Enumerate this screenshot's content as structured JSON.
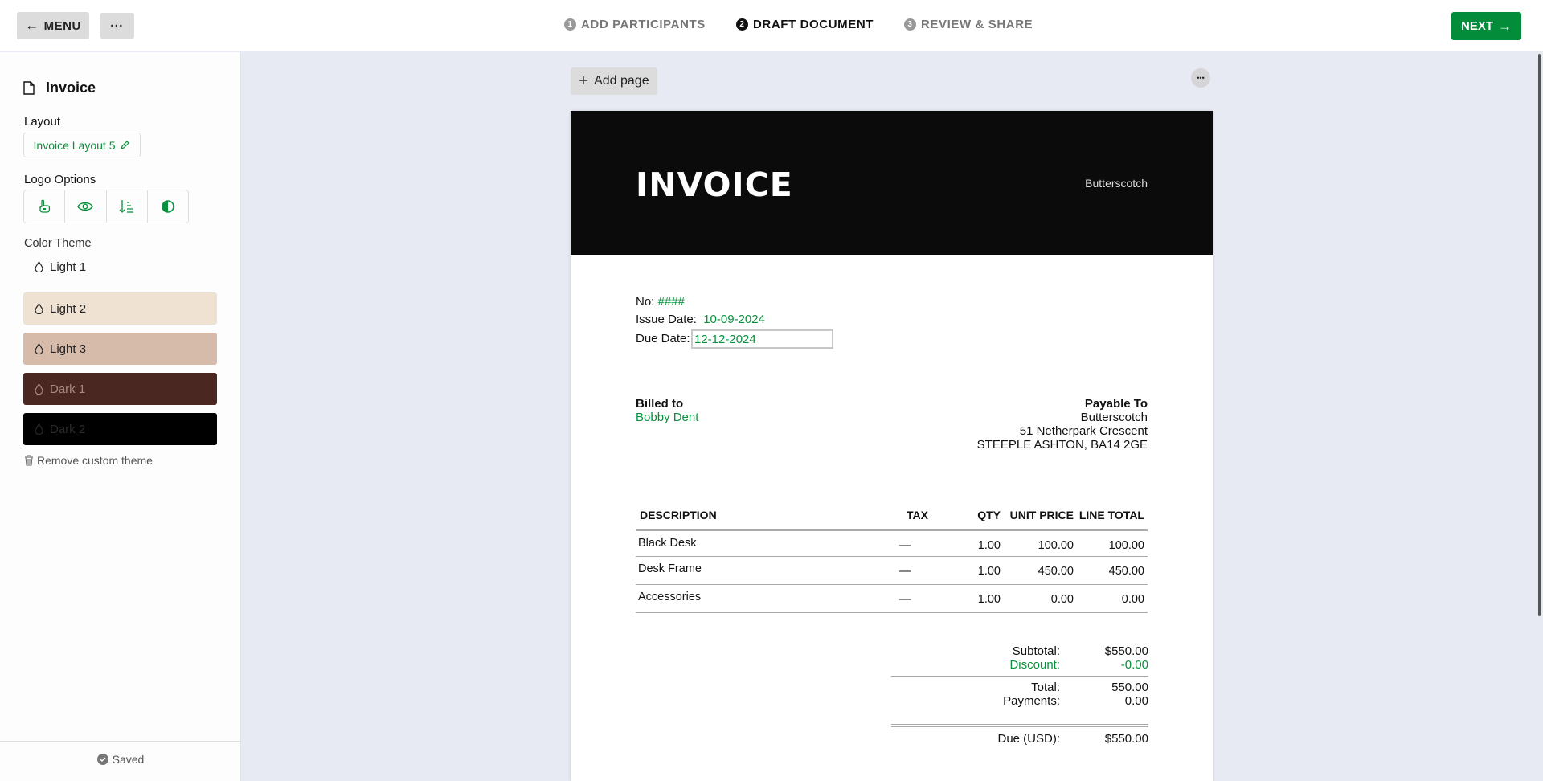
{
  "topbar": {
    "menu_label": "MENU",
    "more_label": "···",
    "steps": [
      {
        "num": "1",
        "label": "ADD PARTICIPANTS"
      },
      {
        "num": "2",
        "label": "DRAFT DOCUMENT"
      },
      {
        "num": "3",
        "label": "REVIEW & SHARE"
      }
    ],
    "active_step": 2,
    "next_label": "NEXT"
  },
  "sidebar": {
    "title": "Invoice",
    "layout_label": "Layout",
    "layout_value": "Invoice Layout 5",
    "logo_options_label": "Logo Options",
    "logo_icons": [
      "hand-pointer-icon",
      "eye-icon",
      "sort-icon",
      "contrast-icon"
    ],
    "color_theme_label": "Color Theme",
    "themes": [
      {
        "label": "Light 1",
        "bg": "#fdfdfd",
        "fg": "#222"
      },
      {
        "label": "Light 2",
        "bg": "#efe2d3",
        "fg": "#222"
      },
      {
        "label": "Light 3",
        "bg": "#d6bbab",
        "fg": "#222"
      },
      {
        "label": "Dark 1",
        "bg": "#4a2821",
        "fg": "#a88a80"
      },
      {
        "label": "Dark 2",
        "bg": "#000000",
        "fg": "#2a2a2a"
      }
    ],
    "remove_theme_label": "Remove custom theme",
    "status": "Saved"
  },
  "canvas": {
    "add_page_label": "Add page",
    "more_label": "•••"
  },
  "invoice": {
    "title": "INVOICE",
    "company": "Butterscotch",
    "no_label": "No:",
    "no_value": "####",
    "issue_label": "Issue Date:",
    "issue_value": "10-09-2024",
    "due_label": "Due Date:",
    "due_value": "12-12-2024",
    "billed_to_label": "Billed to",
    "billed_to_name": "Bobby Dent",
    "payable_label": "Payable To",
    "payable_lines": [
      "Butterscotch",
      "51 Netherpark Crescent",
      "STEEPLE ASHTON, BA14 2GE"
    ],
    "columns": [
      "DESCRIPTION",
      "TAX",
      "QTY",
      "UNIT PRICE",
      "LINE TOTAL"
    ],
    "rows": [
      {
        "desc": "Black Desk",
        "tax": "—",
        "qty": "1.00",
        "price": "100.00",
        "total": "100.00"
      },
      {
        "desc": "Desk Frame",
        "tax": "—",
        "qty": "1.00",
        "price": "450.00",
        "total": "450.00"
      },
      {
        "desc": "Accessories",
        "tax": "—",
        "qty": "1.00",
        "price": "0.00",
        "total": "0.00"
      }
    ],
    "subtotal_label": "Subtotal:",
    "subtotal": "$550.00",
    "discount_label": "Discount:",
    "discount": "-0.00",
    "total_label": "Total:",
    "total": "550.00",
    "payments_label": "Payments:",
    "payments": "0.00",
    "due_total_label": "Due (USD):",
    "due_total": "$550.00"
  },
  "colors": {
    "accent": "#038c3a",
    "canvas_bg": "#e8eaf3"
  }
}
